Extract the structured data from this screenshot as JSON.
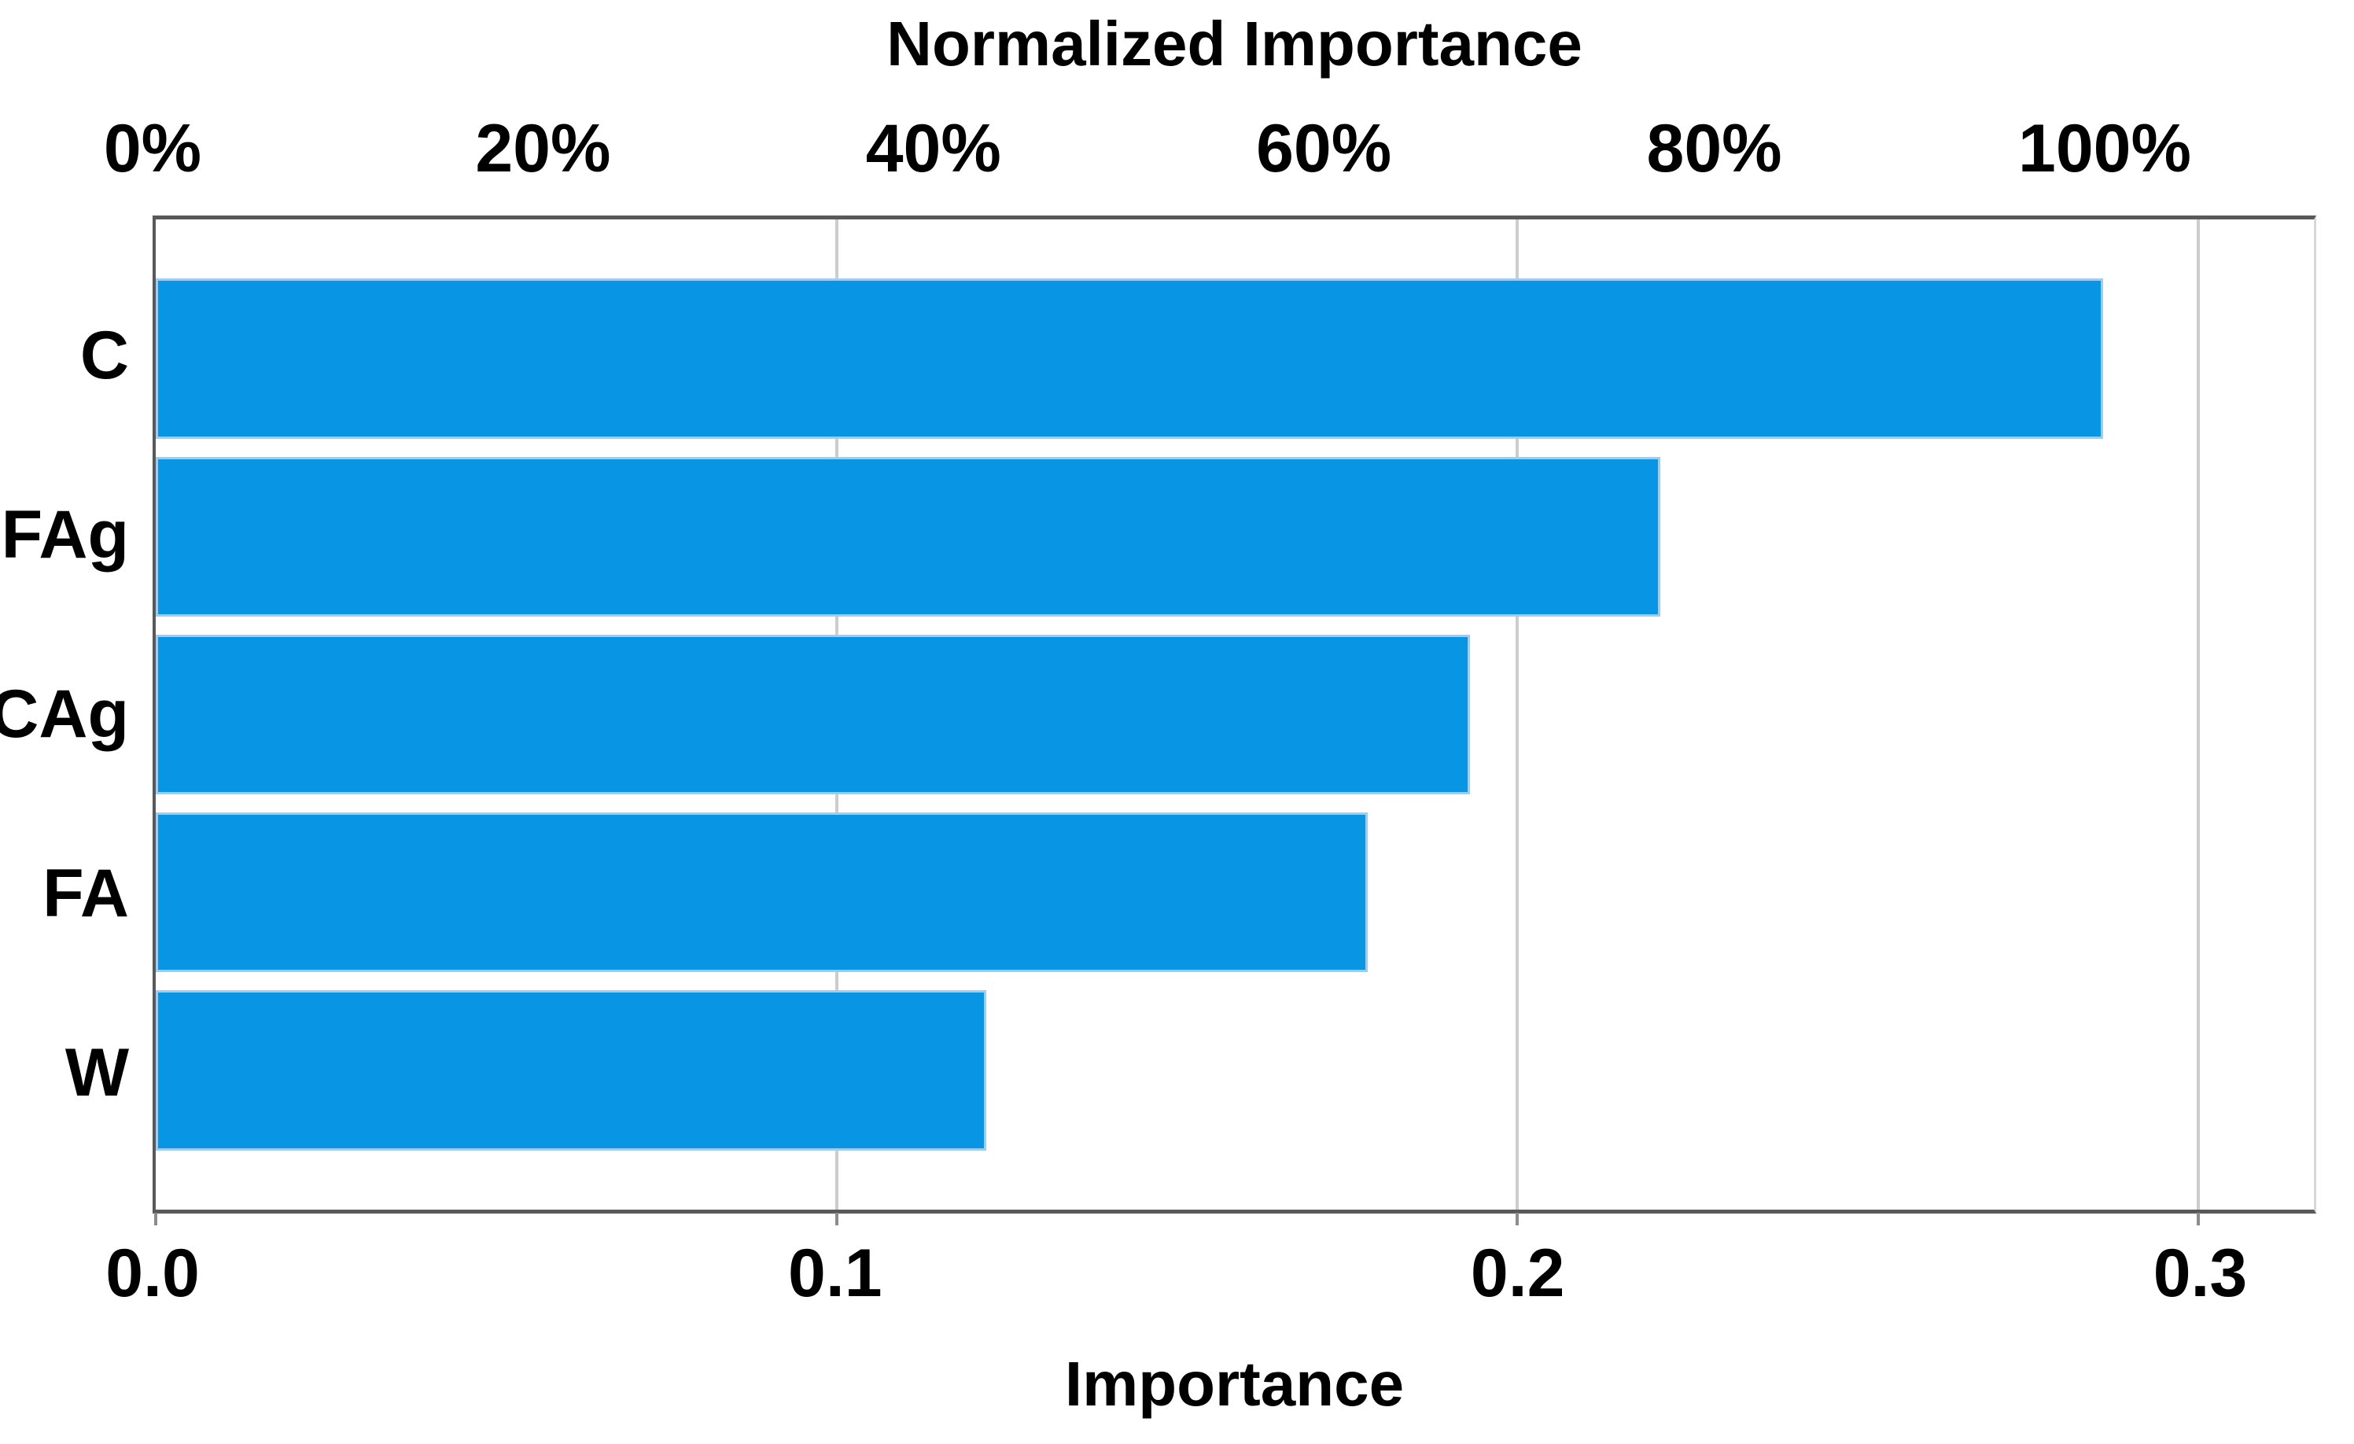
{
  "figure": {
    "top_axis_title": "Normalized Importance",
    "bottom_axis_title": "Importance"
  },
  "chart_data": {
    "type": "bar",
    "orientation": "horizontal",
    "title": "Normalized Importance",
    "xlabel": "Importance",
    "categories": [
      "C",
      "FAg",
      "CAg",
      "FA",
      "W"
    ],
    "values": [
      0.286,
      0.221,
      0.193,
      0.178,
      0.122
    ],
    "normalized_importance_pct": [
      100,
      77.3,
      67.5,
      62.2,
      42.7
    ],
    "top_axis": {
      "title": "Normalized Importance",
      "tick_labels": [
        "0%",
        "20%",
        "40%",
        "60%",
        "80%",
        "100%"
      ],
      "tick_pct": [
        0,
        20,
        40,
        60,
        80,
        100
      ]
    },
    "bottom_axis": {
      "title": "Importance",
      "tick_labels": [
        "0.0",
        "0.1",
        "0.2",
        "0.3"
      ],
      "tick_values": [
        0,
        0.1,
        0.2,
        0.3
      ]
    },
    "xlim": [
      0,
      0.317
    ],
    "max_value": 0.286,
    "grid": "vertical gridlines at bottom-axis ticks, behind bars",
    "legend": "none",
    "colors": {
      "bar_fill": "#0896e4",
      "bar_border": "#9ecdf0",
      "axis_frame": "#595959",
      "gridline": "#cdcdcd",
      "tick": "#8c8c8c",
      "background": "#ffffff",
      "text": "#000000"
    }
  }
}
